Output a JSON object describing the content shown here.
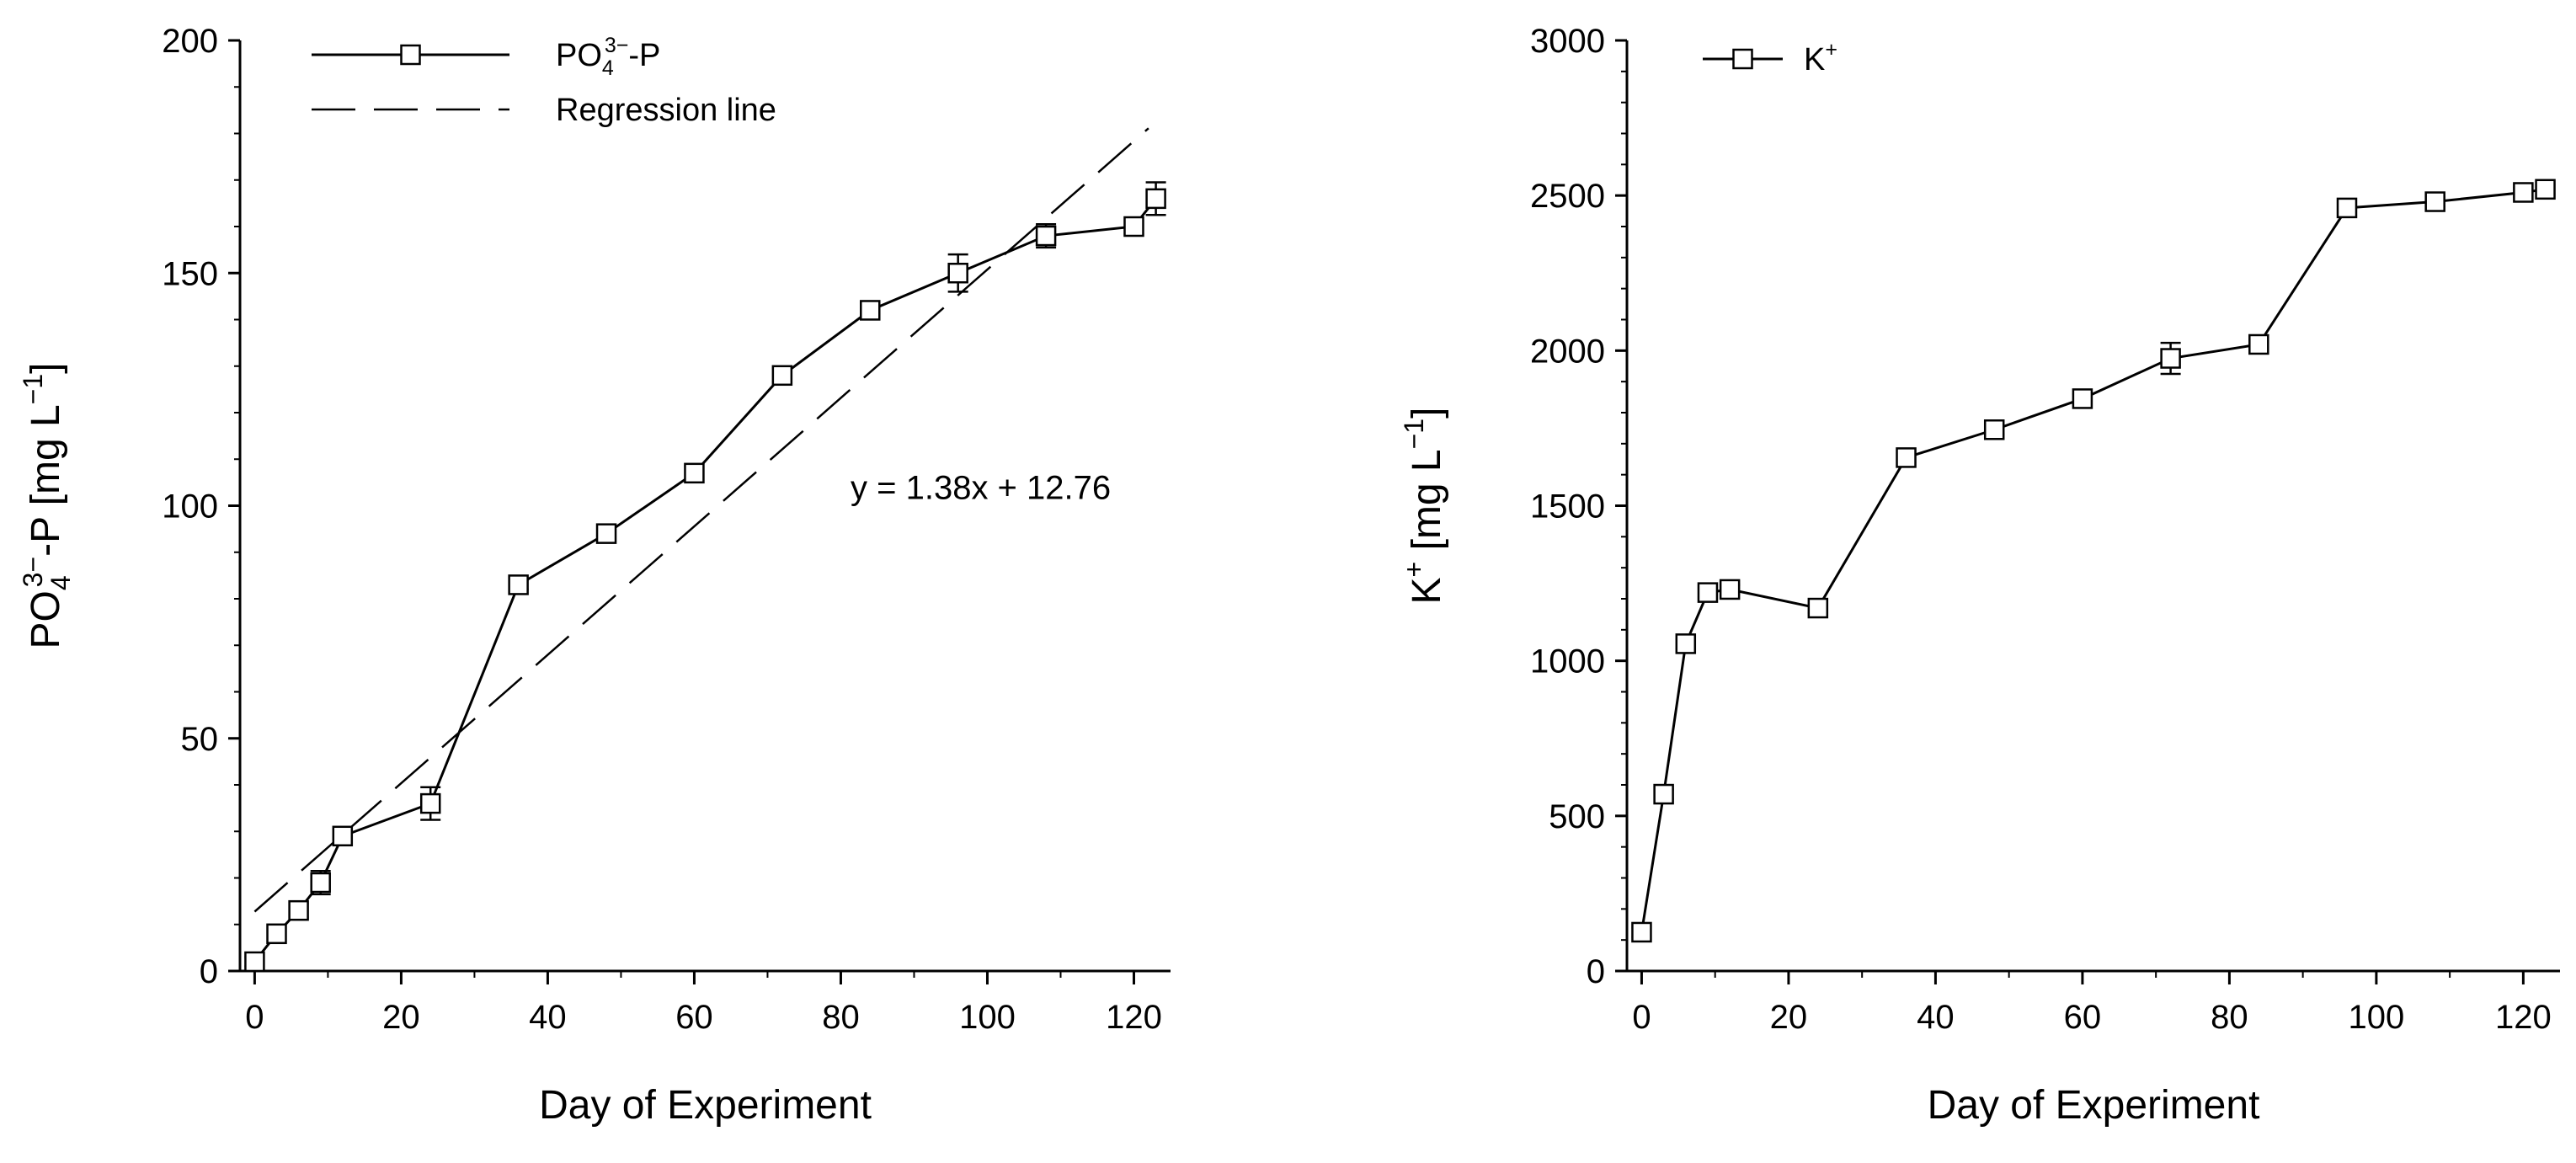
{
  "chart_data": [
    {
      "type": "line",
      "title": "",
      "xlabel": "Day of Experiment",
      "ylabel": {
        "pre": "PO",
        "sub": "4",
        "sup": "3−",
        "post": "-P [mg L",
        "unit_sup": "−1",
        "close": "]"
      },
      "xlim": [
        -2,
        125
      ],
      "ylim": [
        0,
        200
      ],
      "xticks": [
        0,
        20,
        40,
        60,
        80,
        100,
        120
      ],
      "yticks": [
        0,
        50,
        100,
        150,
        200
      ],
      "grid": false,
      "legend_position": "top-left",
      "legend": [
        {
          "label": {
            "pre": "PO",
            "sub": "4",
            "sup": "3−",
            "post": "-P"
          },
          "style": "solid-square-marker"
        },
        {
          "label": {
            "pre": "Regression line",
            "sub": "",
            "sup": "",
            "post": ""
          },
          "style": "dashed"
        }
      ],
      "annotation": "y = 1.38x + 12.76",
      "regression": {
        "slope": 1.38,
        "intercept": 12.76,
        "x_range": [
          0,
          122
        ]
      },
      "series": [
        {
          "name": "PO43−-P",
          "x": [
            0,
            3,
            6,
            9,
            12,
            24,
            36,
            48,
            60,
            72,
            84,
            96,
            108,
            120,
            123
          ],
          "y": [
            2,
            8,
            13,
            19,
            29,
            36,
            83,
            94,
            107,
            128,
            142,
            150,
            158,
            160,
            166
          ],
          "err": [
            1,
            1,
            1.5,
            2.5,
            1.5,
            3.5,
            1,
            1.5,
            1.5,
            1.5,
            1.5,
            4,
            2.5,
            1,
            3.5
          ]
        }
      ]
    },
    {
      "type": "line",
      "title": "",
      "xlabel": "Day of Experiment",
      "ylabel": {
        "pre": "K",
        "sub": "",
        "sup": "+",
        "post": " [mg L",
        "unit_sup": "−1",
        "close": "]"
      },
      "xlim": [
        -2,
        125
      ],
      "ylim": [
        0,
        3000
      ],
      "xticks": [
        0,
        20,
        40,
        60,
        80,
        100,
        120
      ],
      "yticks": [
        0,
        500,
        1000,
        1500,
        2000,
        2500,
        3000
      ],
      "grid": false,
      "legend_position": "top-left",
      "legend": [
        {
          "label": {
            "pre": "K",
            "sub": "",
            "sup": "+",
            "post": ""
          },
          "style": "solid-square-marker"
        }
      ],
      "series": [
        {
          "name": "K+",
          "x": [
            0,
            3,
            6,
            9,
            12,
            24,
            36,
            48,
            60,
            72,
            84,
            96,
            108,
            120,
            123
          ],
          "y": [
            125,
            570,
            1055,
            1220,
            1230,
            1170,
            1655,
            1745,
            1845,
            1975,
            2020,
            2460,
            2480,
            2510,
            2520
          ],
          "err": [
            15,
            15,
            15,
            15,
            15,
            15,
            15,
            15,
            15,
            50,
            15,
            15,
            15,
            15,
            15
          ]
        }
      ]
    }
  ]
}
